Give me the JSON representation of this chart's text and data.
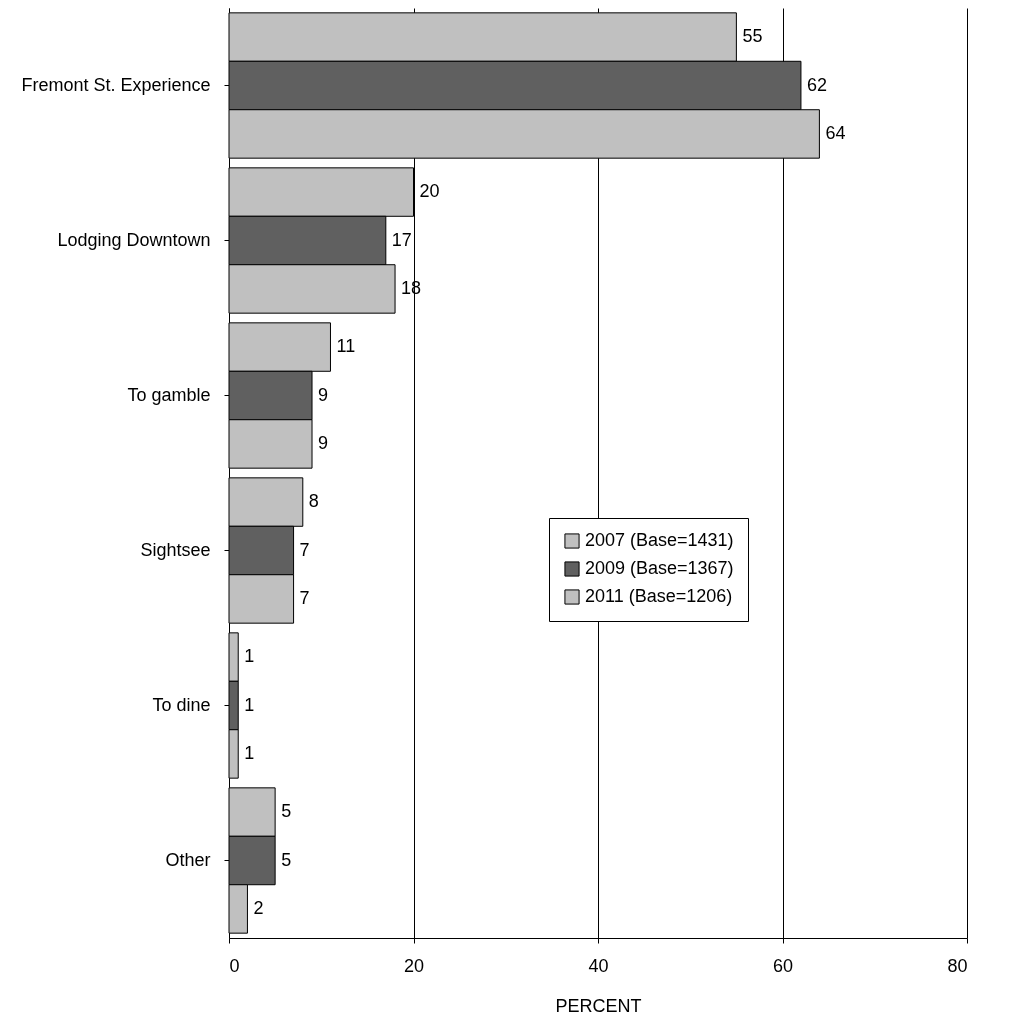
{
  "chart_data": {
    "type": "bar",
    "orientation": "horizontal",
    "xlabel": "PERCENT",
    "categories": [
      "Fremont St. Experience",
      "Lodging Downtown",
      "To gamble",
      "Sightsee",
      "To dine",
      "Other"
    ],
    "series": [
      {
        "name": "2007 (Base=1431)",
        "color": "#c0c0c0",
        "values": [
          55,
          20,
          11,
          8,
          1,
          5
        ]
      },
      {
        "name": "2009 (Base=1367)",
        "color": "#606060",
        "values": [
          62,
          17,
          9,
          7,
          1,
          5
        ]
      },
      {
        "name": "2011 (Base=1206)",
        "color": "#c0c0c0",
        "values": [
          64,
          18,
          9,
          7,
          1,
          2
        ]
      }
    ],
    "xlim": [
      0,
      80
    ],
    "xticks": [
      0,
      20,
      40,
      60,
      80
    ],
    "grid": "x",
    "legend": "right",
    "data_labels": true
  }
}
